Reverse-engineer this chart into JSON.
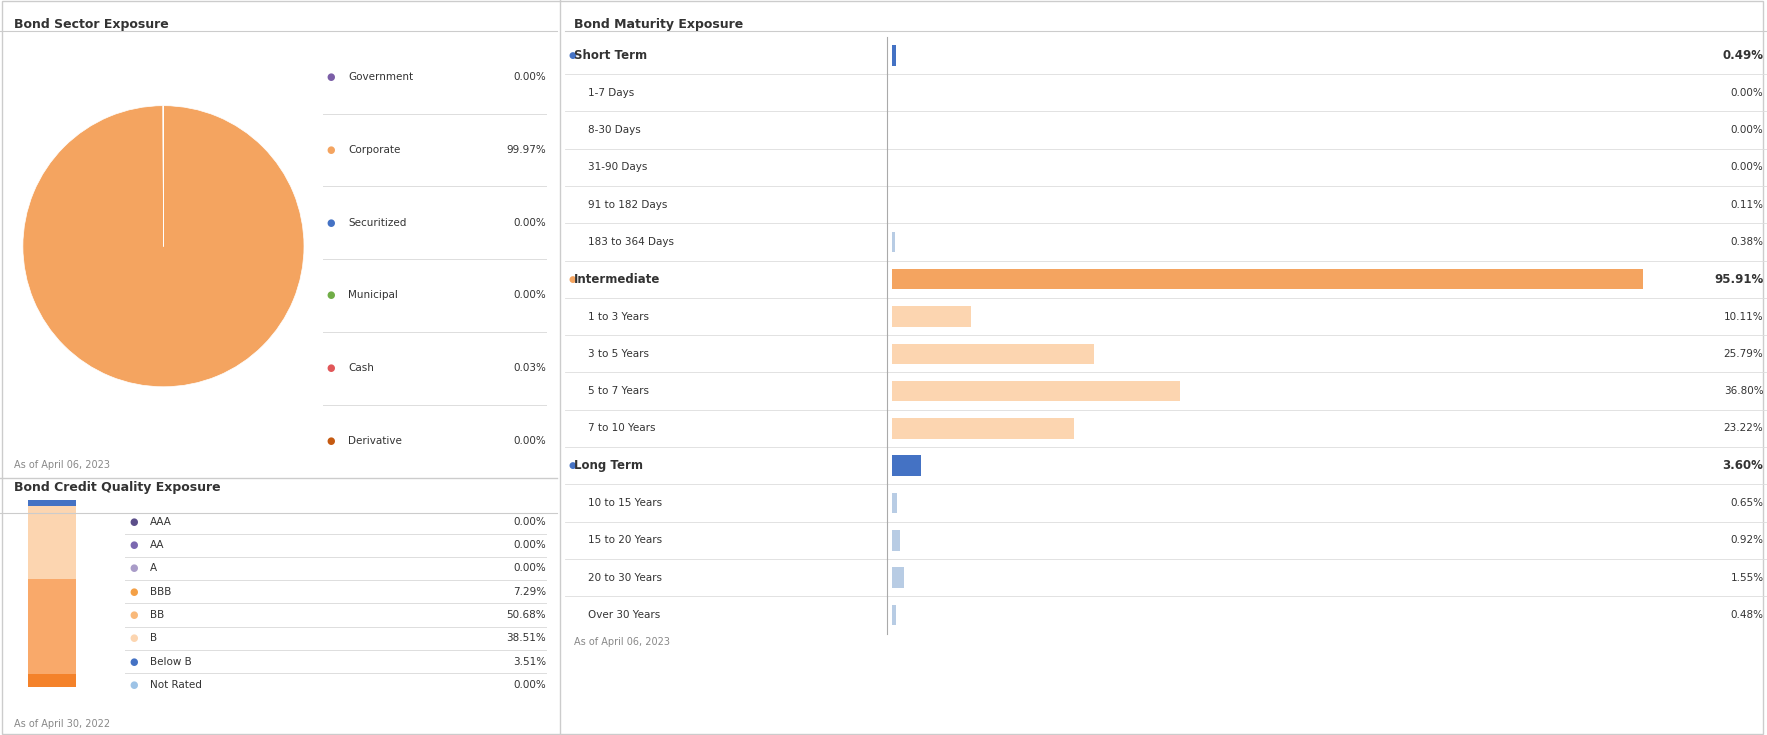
{
  "sector_title": "Bond Sector Exposure",
  "sector_date": "As of April 06, 2023",
  "sector_labels": [
    "Government",
    "Corporate",
    "Securitized",
    "Municipal",
    "Cash",
    "Derivative"
  ],
  "sector_values": [
    0.001,
    99.97,
    0.001,
    0.001,
    0.03,
    0.001
  ],
  "sector_pct_labels": [
    "0.00%",
    "99.97%",
    "0.00%",
    "0.00%",
    "0.03%",
    "0.00%"
  ],
  "sector_colors": [
    "#7b5ea7",
    "#f4a460",
    "#4472c4",
    "#70ad47",
    "#e15759",
    "#c55a11"
  ],
  "credit_title": "Bond Credit Quality Exposure",
  "credit_date": "As of April 30, 2022",
  "credit_labels": [
    "AAA",
    "AA",
    "A",
    "BBB",
    "BB",
    "B",
    "Below B",
    "Not Rated"
  ],
  "credit_pct_labels": [
    "0.00%",
    "0.00%",
    "0.00%",
    "7.29%",
    "50.68%",
    "38.51%",
    "3.51%",
    "0.00%"
  ],
  "credit_legend_colors": [
    "#5c4f8a",
    "#7b68b0",
    "#a99cc8",
    "#f4a046",
    "#f9b97a",
    "#fcd5b0",
    "#4472c4",
    "#9dc3e6"
  ],
  "credit_bar_colors": [
    "#f4822a",
    "#f9a96a",
    "#fcd5b0",
    "#4472c4"
  ],
  "credit_bar_labels": [
    "BBB",
    "BB",
    "B",
    "Below B"
  ],
  "credit_bar_values": [
    7.29,
    50.68,
    38.51,
    3.51
  ],
  "maturity_title": "Bond Maturity Exposure",
  "maturity_date": "As of April 06, 2023",
  "maturity_groups": [
    {
      "name": "Short Term",
      "value": 0.49,
      "pct": "0.49%",
      "color": "#4472c4",
      "sub_items": [
        {
          "name": "1-7 Days",
          "value": 0.0,
          "pct": "0.00%"
        },
        {
          "name": "8-30 Days",
          "value": 0.0,
          "pct": "0.00%"
        },
        {
          "name": "31-90 Days",
          "value": 0.0,
          "pct": "0.00%"
        },
        {
          "name": "91 to 182 Days",
          "value": 0.11,
          "pct": "0.11%"
        },
        {
          "name": "183 to 364 Days",
          "value": 0.38,
          "pct": "0.38%"
        }
      ]
    },
    {
      "name": "Intermediate",
      "value": 95.91,
      "pct": "95.91%",
      "color": "#f4a460",
      "sub_items": [
        {
          "name": "1 to 3 Years",
          "value": 10.11,
          "pct": "10.11%"
        },
        {
          "name": "3 to 5 Years",
          "value": 25.79,
          "pct": "25.79%"
        },
        {
          "name": "5 to 7 Years",
          "value": 36.8,
          "pct": "36.80%"
        },
        {
          "name": "7 to 10 Years",
          "value": 23.22,
          "pct": "23.22%"
        }
      ]
    },
    {
      "name": "Long Term",
      "value": 3.6,
      "pct": "3.60%",
      "color": "#4472c4",
      "sub_items": [
        {
          "name": "10 to 15 Years",
          "value": 0.65,
          "pct": "0.65%"
        },
        {
          "name": "15 to 20 Years",
          "value": 0.92,
          "pct": "0.92%"
        },
        {
          "name": "20 to 30 Years",
          "value": 1.55,
          "pct": "1.55%"
        },
        {
          "name": "Over 30 Years",
          "value": 0.48,
          "pct": "0.48%"
        }
      ]
    }
  ],
  "maturity_max_value": 95.91,
  "green_box_color": "#4a7c5a",
  "bg_color": "#ffffff",
  "text_color": "#333333",
  "separator_color": "#dddddd",
  "border_color": "#cccccc"
}
